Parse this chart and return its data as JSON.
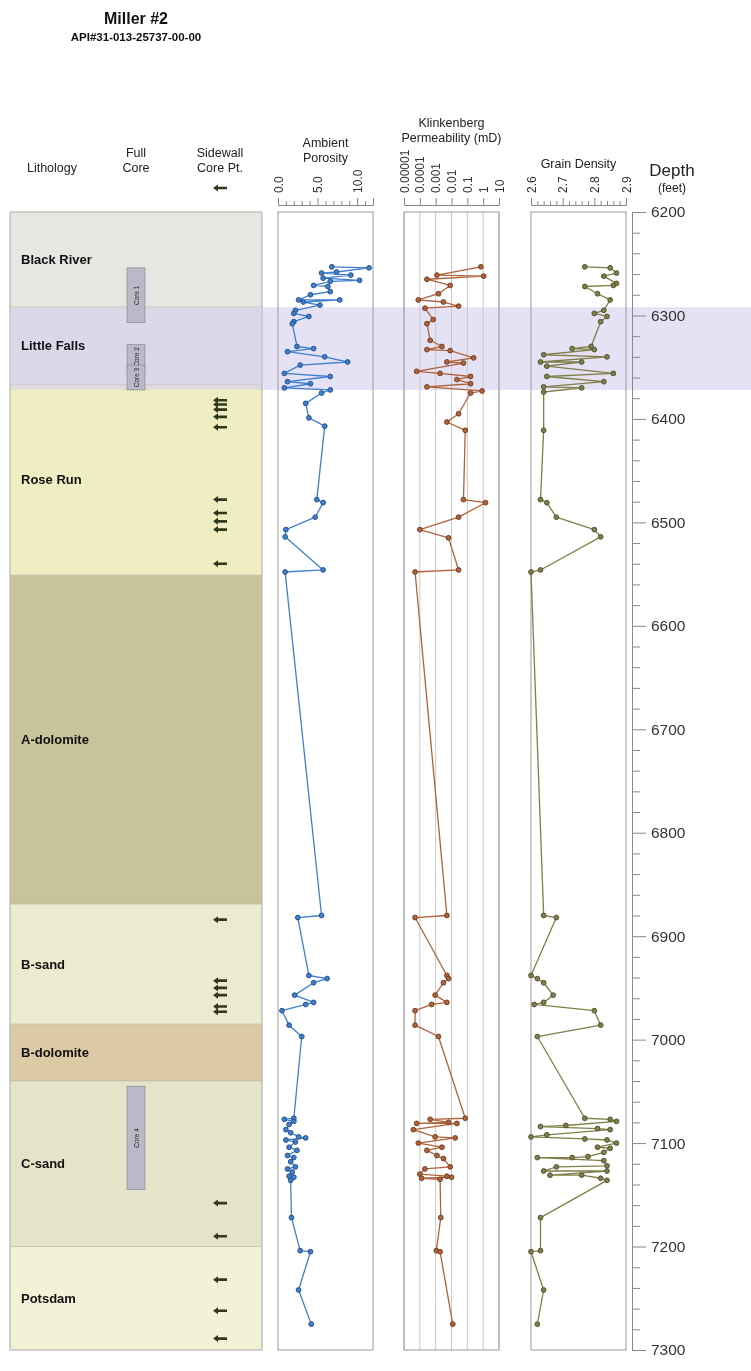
{
  "chart_data": [
    {
      "type": "bar",
      "title": "Miller #2",
      "subtitle": "API#31-013-25737-00-00",
      "categories": [
        "Lithology",
        "Full\nCore",
        "Sidewall\nCore Pt."
      ],
      "ylim": [
        7300,
        6200
      ],
      "tick_labels": "x",
      "bands": [
        {
          "axis": "y",
          "from": 6200,
          "to": 6292,
          "label": "Black River",
          "color": "#e6e6e3"
        },
        {
          "axis": "y",
          "from": 6292,
          "to": 6367,
          "label": "Little Falls",
          "color": "#e6e6e3"
        },
        {
          "axis": "y",
          "from": 6367,
          "to": 6551,
          "label": "Rose Run",
          "color": "#eeeec2"
        },
        {
          "axis": "y",
          "from": 6551,
          "to": 6869,
          "label": "A-dolomite",
          "color": "#c8c39a"
        },
        {
          "axis": "y",
          "from": 6869,
          "to": 6985,
          "label": "B-sand",
          "color": "#ecebd0"
        },
        {
          "axis": "y",
          "from": 6985,
          "to": 7040,
          "label": "B-dolomite",
          "color": "#dccaa6"
        },
        {
          "axis": "y",
          "from": 7040,
          "to": 7200,
          "label": "C-sand",
          "color": "#e6e4c8"
        },
        {
          "axis": "y",
          "from": 7200,
          "to": 7300,
          "label": "Potsdam",
          "color": "#f3f1d6"
        },
        {
          "axis": "y",
          "from": 6292,
          "to": 6372,
          "color": "#d6cfee"
        }
      ],
      "series": [
        {
          "name": "Core 1",
          "color": "#b9b9c7",
          "values": [
            null,
            53,
            null
          ],
          "base": [
            null,
            6254,
            null
          ]
        },
        {
          "name": "Core 2",
          "color": "#b9b9c7",
          "values": [
            null,
            24,
            null
          ],
          "base": [
            null,
            6328,
            null
          ]
        },
        {
          "name": "Core 3",
          "color": "#b9b9c7",
          "values": [
            null,
            24,
            null
          ],
          "base": [
            null,
            6348,
            null
          ]
        },
        {
          "name": "Core 4",
          "color": "#b9b9c7",
          "values": [
            null,
            100,
            null
          ],
          "base": [
            null,
            7045,
            null
          ]
        },
        {
          "type": "scatter",
          "marker": "triangle",
          "color": "#2f3a1c",
          "x": [
            "Sidewall\nCore Pt.",
            "Sidewall\nCore Pt.",
            "Sidewall\nCore Pt.",
            "Sidewall\nCore Pt.",
            "Sidewall\nCore Pt.",
            "Sidewall\nCore Pt.",
            "Sidewall\nCore Pt.",
            "Sidewall\nCore Pt.",
            "Sidewall\nCore Pt.",
            "Sidewall\nCore Pt.",
            "Sidewall\nCore Pt.",
            "Sidewall\nCore Pt.",
            "Sidewall\nCore Pt.",
            "Sidewall\nCore Pt.",
            "Sidewall\nCore Pt.",
            "Sidewall\nCore Pt.",
            "Sidewall\nCore Pt.",
            "Sidewall\nCore Pt.",
            "Sidewall\nCore Pt.",
            "Sidewall\nCore Pt.",
            "Sidewall\nCore Pt."
          ],
          "values": [
            6382,
            6386,
            6391,
            6398,
            6408,
            6478,
            6491,
            6499,
            6507,
            6540,
            6884,
            6943,
            6950,
            6957,
            6968,
            6973,
            7158,
            7190,
            7232,
            7262,
            7289
          ]
        }
      ]
    },
    {
      "type": "line",
      "xlabel": "Ambient\nPorosity",
      "xlim": [
        0,
        12
      ],
      "xticks": [
        {
          "value": 0,
          "label": "0.0"
        },
        {
          "value": 1,
          "label": null
        },
        {
          "value": 2,
          "label": null
        },
        {
          "value": 3,
          "label": null
        },
        {
          "value": 4,
          "label": null
        },
        {
          "value": 5,
          "label": "5.0"
        },
        {
          "value": 6,
          "label": null
        },
        {
          "value": 7,
          "label": null
        },
        {
          "value": 8,
          "label": null
        },
        {
          "value": 9,
          "label": null
        },
        {
          "value": 10,
          "label": "10.0"
        },
        {
          "value": 11,
          "label": null
        },
        {
          "value": 12,
          "label": null
        }
      ],
      "ylim": [
        7300,
        6200
      ],
      "tick_labels": "x",
      "marker": "circle",
      "bands": [
        {
          "axis": "y",
          "from": 6292,
          "to": 6372,
          "color": "#d6cfee"
        }
      ],
      "series": [
        {
          "color": "#3f7fd0",
          "x": [
            6.8,
            11.5,
            7.4,
            5.5,
            9.2,
            5.7,
            10.3,
            6.6,
            4.5,
            6.3,
            6.6,
            4.1,
            2.6,
            7.8,
            3.2,
            5.3,
            2.2,
            2.0,
            3.9,
            2.0,
            1.8,
            2.4,
            4.5,
            1.2,
            5.9,
            8.8,
            2.8,
            0.8,
            6.6,
            1.2,
            4.1,
            0.8,
            6.6,
            5.5,
            3.5,
            3.9,
            5.9,
            4.9,
            5.7,
            4.7,
            1.0,
            0.9,
            5.7,
            0.9,
            5.5,
            2.5,
            3.9,
            6.2,
            4.5,
            2.1,
            4.5,
            3.5,
            0.5,
            1.4,
            3.0,
            2.0,
            0.8,
            2.0,
            1.4,
            1.0,
            1.6,
            2.6,
            3.5,
            1.0,
            2.2,
            1.4,
            2.4,
            1.2,
            2.0,
            1.6,
            2.2,
            1.2,
            1.8,
            1.4,
            2.0,
            1.6,
            1.7,
            2.8,
            4.1,
            2.6,
            4.2
          ],
          "values": [
            6253,
            6254,
            6258,
            6259,
            6261,
            6264,
            6266,
            6267,
            6271,
            6272,
            6277,
            6280,
            6285,
            6285,
            6287,
            6290,
            6295,
            6298,
            6301,
            6306,
            6308,
            6330,
            6332,
            6335,
            6340,
            6345,
            6348,
            6356,
            6359,
            6364,
            6366,
            6370,
            6372,
            6375,
            6385,
            6399,
            6407,
            6478,
            6481,
            6495,
            6507,
            6514,
            6546,
            6548,
            6880,
            6882,
            6938,
            6941,
            6945,
            6957,
            6964,
            6966,
            6972,
            6986,
            6997,
            7076,
            7077,
            7079,
            7082,
            7087,
            7090,
            7094,
            7095,
            7097,
            7099,
            7104,
            7107,
            7112,
            7114,
            7118,
            7123,
            7125,
            7128,
            7132,
            7133,
            7136,
            7172,
            7204,
            7205,
            7242,
            7275
          ]
        }
      ]
    },
    {
      "type": "line",
      "xlabel": "Klinkenberg\nPermeability (mD)",
      "log": "x",
      "grid": "x",
      "xlim": [
        1e-05,
        10
      ],
      "xticks": [
        {
          "value": 1e-05,
          "label": "0.00001"
        },
        0.0001,
        0.001,
        0.01,
        0.1,
        1,
        10
      ],
      "ylim": [
        7300,
        6200
      ],
      "tick_labels": "x",
      "marker": "circle",
      "bands": [
        {
          "axis": "y",
          "from": 6292,
          "to": 6372,
          "color": "#d6cfee"
        }
      ],
      "series": [
        {
          "color": "#b0623a",
          "x": [
            0.72,
            0.0012,
            1.07,
            0.00028,
            0.0083,
            0.0015,
            8e-05,
            0.0031,
            0.028,
            0.00021,
            0.0007,
            0.00028,
            0.00045,
            0.0025,
            0.00028,
            0.0083,
            0.25,
            0.0051,
            0.057,
            6.3e-05,
            0.0019,
            0.16,
            0.022,
            0.16,
            0.00028,
            0.85,
            0.16,
            0.028,
            0.0051,
            0.074,
            0.057,
            1.4,
            0.028,
            0.0001,
            0.0065,
            0.028,
            5e-05,
            0.0051,
            5e-05,
            0.0051,
            0.0065,
            0.0031,
            0.00093,
            0.0051,
            0.00056,
            5e-05,
            5e-05,
            0.0015,
            0.074,
            0.00045,
            0.0065,
            6.3e-05,
            0.022,
            3.9e-05,
            0.00093,
            0.017,
            8e-05,
            0.0025,
            0.00028,
            0.0012,
            0.0031,
            0.0083,
            0.00021,
            0.0001,
            0.0051,
            0.01,
            0.00013,
            0.0019,
            0.0021,
            0.0011,
            0.0019,
            0.012
          ],
          "values": [
            6253,
            6261,
            6262,
            6265,
            6271,
            6279,
            6285,
            6287,
            6291,
            6293,
            6304,
            6308,
            6324,
            6330,
            6333,
            6334,
            6341,
            6345,
            6346,
            6354,
            6356,
            6359,
            6362,
            6366,
            6369,
            6373,
            6375,
            6395,
            6403,
            6411,
            6478,
            6481,
            6495,
            6507,
            6515,
            6546,
            6548,
            6880,
            6882,
            6938,
            6941,
            6945,
            6957,
            6964,
            6966,
            6972,
            6986,
            6997,
            7076,
            7077,
            7080,
            7081,
            7081,
            7087,
            7094,
            7095,
            7100,
            7104,
            7107,
            7112,
            7115,
            7123,
            7125,
            7130,
            7132,
            7133,
            7134,
            7135,
            7172,
            7204,
            7205,
            7275
          ]
        }
      ]
    },
    {
      "type": "line",
      "xlabel": "Grain Density",
      "xlim": [
        2.6,
        2.9
      ],
      "xticks": [
        2.6,
        {
          "value": 2.62,
          "label": null
        },
        {
          "value": 2.64,
          "label": null
        },
        {
          "value": 2.66,
          "label": null
        },
        {
          "value": 2.68,
          "label": null
        },
        2.7,
        {
          "value": 2.72,
          "label": null
        },
        {
          "value": 2.74,
          "label": null
        },
        {
          "value": 2.76,
          "label": null
        },
        {
          "value": 2.78,
          "label": null
        },
        2.8,
        {
          "value": 2.82,
          "label": null
        },
        {
          "value": 2.84,
          "label": null
        },
        {
          "value": 2.86,
          "label": null
        },
        {
          "value": 2.88,
          "label": null
        },
        2.9
      ],
      "ylim": [
        7300,
        6200
      ],
      "marker": "circle",
      "ylabel": "Depth (feet)",
      "yticks": [
        6200,
        {
          "value": 6220,
          "label": null
        },
        {
          "value": 6240,
          "label": null
        },
        {
          "value": 6260,
          "label": null
        },
        {
          "value": 6280,
          "label": null
        },
        6300,
        {
          "value": 6320,
          "label": null
        },
        {
          "value": 6340,
          "label": null
        },
        {
          "value": 6360,
          "label": null
        },
        {
          "value": 6380,
          "label": null
        },
        6400,
        {
          "value": 6420,
          "label": null
        },
        {
          "value": 6440,
          "label": null
        },
        {
          "value": 6460,
          "label": null
        },
        {
          "value": 6480,
          "label": null
        },
        6500,
        {
          "value": 6520,
          "label": null
        },
        {
          "value": 6540,
          "label": null
        },
        {
          "value": 6560,
          "label": null
        },
        {
          "value": 6580,
          "label": null
        },
        6600,
        {
          "value": 6620,
          "label": null
        },
        {
          "value": 6640,
          "label": null
        },
        {
          "value": 6660,
          "label": null
        },
        {
          "value": 6680,
          "label": null
        },
        6700,
        {
          "value": 6720,
          "label": null
        },
        {
          "value": 6740,
          "label": null
        },
        {
          "value": 6760,
          "label": null
        },
        {
          "value": 6780,
          "label": null
        },
        6800,
        {
          "value": 6820,
          "label": null
        },
        {
          "value": 6840,
          "label": null
        },
        {
          "value": 6860,
          "label": null
        },
        {
          "value": 6880,
          "label": null
        },
        6900,
        {
          "value": 6920,
          "label": null
        },
        {
          "value": 6940,
          "label": null
        },
        {
          "value": 6960,
          "label": null
        },
        {
          "value": 6980,
          "label": null
        },
        7000,
        {
          "value": 7020,
          "label": null
        },
        {
          "value": 7040,
          "label": null
        },
        {
          "value": 7060,
          "label": null
        },
        {
          "value": 7080,
          "label": null
        },
        7100,
        {
          "value": 7120,
          "label": null
        },
        {
          "value": 7140,
          "label": null
        },
        {
          "value": 7160,
          "label": null
        },
        {
          "value": 7180,
          "label": null
        },
        7200,
        {
          "value": 7220,
          "label": null
        },
        {
          "value": 7240,
          "label": null
        },
        {
          "value": 7260,
          "label": null
        },
        {
          "value": 7280,
          "label": null
        },
        7300
      ],
      "bands": [
        {
          "axis": "y",
          "from": 6292,
          "to": 6372,
          "color": "#d6cfee"
        }
      ],
      "series": [
        {
          "color": "#7f7f4a",
          "x": [
            2.77,
            2.85,
            2.87,
            2.83,
            2.87,
            2.86,
            2.77,
            2.81,
            2.85,
            2.83,
            2.8,
            2.84,
            2.82,
            2.79,
            2.73,
            2.8,
            2.64,
            2.84,
            2.63,
            2.76,
            2.65,
            2.86,
            2.65,
            2.83,
            2.64,
            2.76,
            2.64,
            2.64,
            2.63,
            2.65,
            2.68,
            2.8,
            2.82,
            2.63,
            2.6,
            2.64,
            2.68,
            2.6,
            2.62,
            2.64,
            2.67,
            2.64,
            2.61,
            2.8,
            2.82,
            2.62,
            2.77,
            2.85,
            2.87,
            2.71,
            2.63,
            2.81,
            2.85,
            2.65,
            2.6,
            2.77,
            2.84,
            2.87,
            2.81,
            2.85,
            2.83,
            2.78,
            2.73,
            2.62,
            2.83,
            2.84,
            2.68,
            2.64,
            2.84,
            2.66,
            2.76,
            2.82,
            2.84,
            2.63,
            2.63,
            2.6,
            2.64,
            2.62
          ],
          "values": [
            6253,
            6254,
            6259,
            6262,
            6269,
            6271,
            6272,
            6279,
            6285,
            6295,
            6298,
            6301,
            6306,
            6330,
            6332,
            6333,
            6338,
            6340,
            6345,
            6345,
            6349,
            6356,
            6359,
            6364,
            6369,
            6370,
            6374,
            6411,
            6478,
            6481,
            6495,
            6507,
            6514,
            6546,
            6548,
            6880,
            6882,
            6938,
            6941,
            6945,
            6957,
            6964,
            6966,
            6972,
            6986,
            6997,
            7076,
            7077,
            7079,
            7083,
            7084,
            7086,
            7087,
            7092,
            7094,
            7096,
            7097,
            7100,
            7104,
            7105,
            7109,
            7113,
            7114,
            7114,
            7117,
            7122,
            7123,
            7127,
            7127,
            7131,
            7131,
            7134,
            7136,
            7172,
            7204,
            7205,
            7242,
            7275
          ]
        }
      ]
    }
  ]
}
